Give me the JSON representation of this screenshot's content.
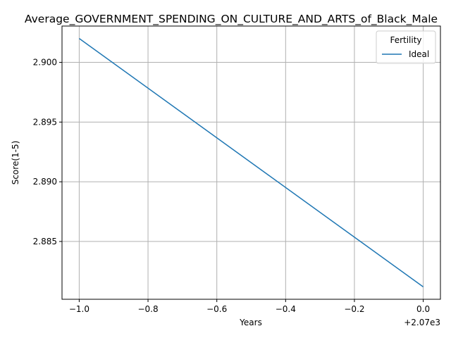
{
  "chart_data": {
    "type": "line",
    "title": "Average_GOVERNMENT_SPENDING_ON_CULTURE_AND_ARTS_of_Black_Male",
    "xlabel": "Years",
    "ylabel": "Score(1-5)",
    "x_offset_label": "+2.07e3",
    "x": [
      2069,
      2070
    ],
    "series": [
      {
        "name": "Ideal",
        "values": [
          2.902,
          2.8812
        ],
        "color": "#1f77b4"
      }
    ],
    "xlim": [
      2068.95,
      2070.05
    ],
    "ylim": [
      2.88016,
      2.90304
    ],
    "xticks": [
      {
        "value": 2069.0,
        "label": "−1.0"
      },
      {
        "value": 2069.2,
        "label": "−0.8"
      },
      {
        "value": 2069.4,
        "label": "−0.6"
      },
      {
        "value": 2069.6,
        "label": "−0.4"
      },
      {
        "value": 2069.8,
        "label": "−0.2"
      },
      {
        "value": 2070.0,
        "label": "0.0"
      }
    ],
    "yticks": [
      {
        "value": 2.885,
        "label": "2.885"
      },
      {
        "value": 2.89,
        "label": "2.890"
      },
      {
        "value": 2.895,
        "label": "2.895"
      },
      {
        "value": 2.9,
        "label": "2.900"
      }
    ],
    "grid": true,
    "legend": {
      "title": "Fertility",
      "position": "top-right"
    }
  }
}
